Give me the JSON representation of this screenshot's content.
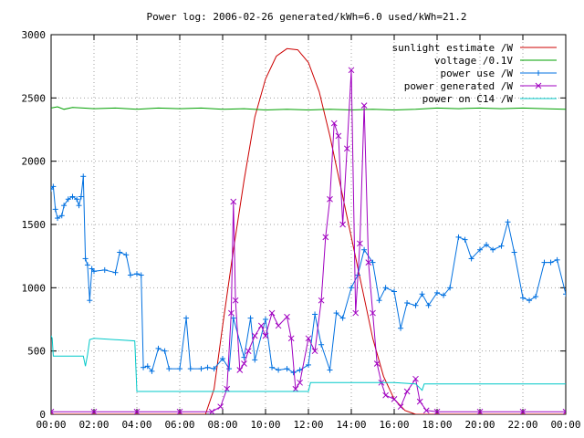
{
  "chart_data": {
    "type": "line",
    "title": "Power log: 2006-02-26 generated/kWh=6.0 used/kWh=21.2",
    "xlabel": "",
    "ylabel": "",
    "xlim": [
      0,
      24
    ],
    "ylim": [
      0,
      3000
    ],
    "x_ticks": [
      {
        "v": 0,
        "label": "00:00"
      },
      {
        "v": 2,
        "label": "02:00"
      },
      {
        "v": 4,
        "label": "04:00"
      },
      {
        "v": 6,
        "label": "06:00"
      },
      {
        "v": 8,
        "label": "08:00"
      },
      {
        "v": 10,
        "label": "10:00"
      },
      {
        "v": 12,
        "label": "12:00"
      },
      {
        "v": 14,
        "label": "14:00"
      },
      {
        "v": 16,
        "label": "16:00"
      },
      {
        "v": 18,
        "label": "18:00"
      },
      {
        "v": 20,
        "label": "20:00"
      },
      {
        "v": 22,
        "label": "22:00"
      },
      {
        "v": 24,
        "label": "00:00"
      }
    ],
    "y_ticks": [
      {
        "v": 0,
        "label": "0"
      },
      {
        "v": 500,
        "label": "500"
      },
      {
        "v": 1000,
        "label": "1000"
      },
      {
        "v": 1500,
        "label": "1500"
      },
      {
        "v": 2000,
        "label": "2000"
      },
      {
        "v": 2500,
        "label": "2500"
      },
      {
        "v": 3000,
        "label": "3000"
      }
    ],
    "grid": true,
    "legend_position": "top-right",
    "series": [
      {
        "name": "sunlight estimate /W",
        "color": "#cc0000",
        "marker": "none",
        "points": [
          [
            0,
            0
          ],
          [
            7.2,
            0
          ],
          [
            7.6,
            200
          ],
          [
            8.0,
            700
          ],
          [
            8.5,
            1300
          ],
          [
            9.0,
            1850
          ],
          [
            9.5,
            2350
          ],
          [
            10.0,
            2650
          ],
          [
            10.5,
            2830
          ],
          [
            11.0,
            2890
          ],
          [
            11.5,
            2880
          ],
          [
            12.0,
            2780
          ],
          [
            12.5,
            2550
          ],
          [
            13.0,
            2200
          ],
          [
            13.5,
            1800
          ],
          [
            14.0,
            1400
          ],
          [
            14.5,
            1000
          ],
          [
            15.0,
            600
          ],
          [
            15.5,
            300
          ],
          [
            16.0,
            120
          ],
          [
            16.5,
            30
          ],
          [
            17.0,
            0
          ],
          [
            24,
            0
          ]
        ]
      },
      {
        "name": "voltage /0.1V",
        "color": "#00a000",
        "marker": "none",
        "points": [
          [
            0,
            2420
          ],
          [
            0.3,
            2430
          ],
          [
            0.6,
            2410
          ],
          [
            1,
            2425
          ],
          [
            1.5,
            2420
          ],
          [
            2,
            2415
          ],
          [
            3,
            2420
          ],
          [
            4,
            2410
          ],
          [
            5,
            2420
          ],
          [
            6,
            2415
          ],
          [
            7,
            2420
          ],
          [
            8,
            2410
          ],
          [
            9,
            2415
          ],
          [
            10,
            2405
          ],
          [
            11,
            2410
          ],
          [
            12,
            2405
          ],
          [
            13,
            2410
          ],
          [
            14,
            2405
          ],
          [
            15,
            2410
          ],
          [
            16,
            2405
          ],
          [
            17,
            2410
          ],
          [
            18,
            2420
          ],
          [
            19,
            2415
          ],
          [
            20,
            2420
          ],
          [
            21,
            2415
          ],
          [
            22,
            2420
          ],
          [
            23,
            2415
          ],
          [
            24,
            2410
          ]
        ]
      },
      {
        "name": "power use /W",
        "color": "#0070e0",
        "marker": "plus",
        "points": [
          [
            0,
            1780
          ],
          [
            0.1,
            1800
          ],
          [
            0.2,
            1620
          ],
          [
            0.3,
            1550
          ],
          [
            0.5,
            1570
          ],
          [
            0.6,
            1650
          ],
          [
            0.8,
            1700
          ],
          [
            1.0,
            1720
          ],
          [
            1.2,
            1700
          ],
          [
            1.3,
            1650
          ],
          [
            1.4,
            1720
          ],
          [
            1.5,
            1880
          ],
          [
            1.6,
            1230
          ],
          [
            1.7,
            1180
          ],
          [
            1.8,
            900
          ],
          [
            1.9,
            1150
          ],
          [
            2.0,
            1130
          ],
          [
            2.5,
            1140
          ],
          [
            3.0,
            1120
          ],
          [
            3.2,
            1280
          ],
          [
            3.5,
            1260
          ],
          [
            3.7,
            1100
          ],
          [
            4.0,
            1110
          ],
          [
            4.2,
            1100
          ],
          [
            4.3,
            370
          ],
          [
            4.5,
            380
          ],
          [
            4.7,
            340
          ],
          [
            5.0,
            520
          ],
          [
            5.3,
            500
          ],
          [
            5.5,
            360
          ],
          [
            6.0,
            360
          ],
          [
            6.3,
            760
          ],
          [
            6.5,
            360
          ],
          [
            7.0,
            360
          ],
          [
            7.3,
            370
          ],
          [
            7.6,
            360
          ],
          [
            8.0,
            440
          ],
          [
            8.3,
            360
          ],
          [
            8.5,
            760
          ],
          [
            9.0,
            450
          ],
          [
            9.3,
            760
          ],
          [
            9.5,
            430
          ],
          [
            10.0,
            750
          ],
          [
            10.3,
            370
          ],
          [
            10.6,
            350
          ],
          [
            11.0,
            360
          ],
          [
            11.3,
            330
          ],
          [
            11.6,
            350
          ],
          [
            12.0,
            390
          ],
          [
            12.3,
            790
          ],
          [
            12.6,
            550
          ],
          [
            13.0,
            350
          ],
          [
            13.3,
            800
          ],
          [
            13.6,
            760
          ],
          [
            14.0,
            1000
          ],
          [
            14.3,
            1100
          ],
          [
            14.6,
            1300
          ],
          [
            15.0,
            1200
          ],
          [
            15.3,
            900
          ],
          [
            15.6,
            1000
          ],
          [
            16.0,
            970
          ],
          [
            16.3,
            680
          ],
          [
            16.6,
            880
          ],
          [
            17.0,
            860
          ],
          [
            17.3,
            950
          ],
          [
            17.6,
            860
          ],
          [
            18.0,
            960
          ],
          [
            18.3,
            940
          ],
          [
            18.6,
            1000
          ],
          [
            19.0,
            1400
          ],
          [
            19.3,
            1380
          ],
          [
            19.6,
            1230
          ],
          [
            20.0,
            1300
          ],
          [
            20.3,
            1340
          ],
          [
            20.6,
            1300
          ],
          [
            21.0,
            1330
          ],
          [
            21.3,
            1520
          ],
          [
            21.6,
            1280
          ],
          [
            22.0,
            920
          ],
          [
            22.3,
            900
          ],
          [
            22.6,
            930
          ],
          [
            23.0,
            1200
          ],
          [
            23.3,
            1200
          ],
          [
            23.6,
            1220
          ],
          [
            24.0,
            950
          ]
        ]
      },
      {
        "name": "power generated /W",
        "color": "#a000c0",
        "marker": "x",
        "points": [
          [
            0,
            20
          ],
          [
            2,
            20
          ],
          [
            4,
            20
          ],
          [
            6,
            20
          ],
          [
            7.5,
            20
          ],
          [
            7.9,
            60
          ],
          [
            8.2,
            200
          ],
          [
            8.4,
            800
          ],
          [
            8.5,
            1680
          ],
          [
            8.6,
            900
          ],
          [
            8.8,
            350
          ],
          [
            9.0,
            400
          ],
          [
            9.2,
            500
          ],
          [
            9.5,
            620
          ],
          [
            9.8,
            700
          ],
          [
            10.0,
            620
          ],
          [
            10.3,
            800
          ],
          [
            10.6,
            700
          ],
          [
            11.0,
            770
          ],
          [
            11.2,
            600
          ],
          [
            11.4,
            200
          ],
          [
            11.6,
            250
          ],
          [
            12.0,
            600
          ],
          [
            12.3,
            500
          ],
          [
            12.6,
            900
          ],
          [
            12.8,
            1400
          ],
          [
            13.0,
            1700
          ],
          [
            13.2,
            2300
          ],
          [
            13.4,
            2200
          ],
          [
            13.6,
            1500
          ],
          [
            13.8,
            2100
          ],
          [
            14.0,
            2720
          ],
          [
            14.2,
            800
          ],
          [
            14.4,
            1350
          ],
          [
            14.6,
            2440
          ],
          [
            14.8,
            1200
          ],
          [
            15.0,
            800
          ],
          [
            15.2,
            400
          ],
          [
            15.4,
            250
          ],
          [
            15.6,
            150
          ],
          [
            16.0,
            120
          ],
          [
            16.3,
            60
          ],
          [
            16.6,
            180
          ],
          [
            17.0,
            280
          ],
          [
            17.2,
            100
          ],
          [
            17.5,
            30
          ],
          [
            18,
            20
          ],
          [
            20,
            20
          ],
          [
            22,
            20
          ],
          [
            24,
            20
          ]
        ]
      },
      {
        "name": "power on C14 /W",
        "color": "#00c8c8",
        "marker": "none",
        "points": [
          [
            0,
            620
          ],
          [
            0.05,
            600
          ],
          [
            0.1,
            460
          ],
          [
            1.5,
            460
          ],
          [
            1.6,
            380
          ],
          [
            1.7,
            470
          ],
          [
            1.8,
            590
          ],
          [
            2.0,
            600
          ],
          [
            3.9,
            580
          ],
          [
            4.0,
            180
          ],
          [
            6.0,
            180
          ],
          [
            8.0,
            180
          ],
          [
            9.0,
            180
          ],
          [
            10.0,
            180
          ],
          [
            12.0,
            180
          ],
          [
            12.1,
            250
          ],
          [
            14.0,
            250
          ],
          [
            16.0,
            250
          ],
          [
            17.0,
            240
          ],
          [
            17.3,
            190
          ],
          [
            17.4,
            240
          ],
          [
            24.0,
            240
          ]
        ]
      }
    ]
  }
}
